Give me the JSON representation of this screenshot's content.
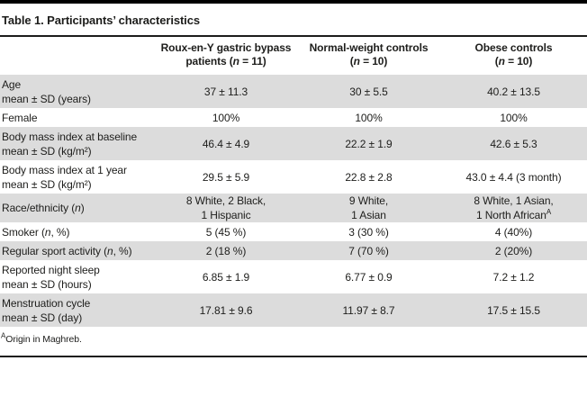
{
  "page": {
    "title": "Table 1. Participants’ characteristics",
    "footnote": [
      {
        "t": "A",
        "s": true
      },
      {
        "t": "Origin in Maghreb."
      }
    ]
  },
  "colors": {
    "shaded_row": "#dcdcdc",
    "rule": "#1d1d1b",
    "text": "#1d1d1b"
  },
  "header": {
    "columns": [
      {
        "line1": "Roux-en-Y gastric bypass",
        "line2": [
          {
            "t": "patients ("
          },
          {
            "t": "n",
            "i": true
          },
          {
            "t": " = 11)"
          }
        ]
      },
      {
        "line1": "Normal-weight controls",
        "line2": [
          {
            "t": "("
          },
          {
            "t": "n",
            "i": true
          },
          {
            "t": " = 10)"
          }
        ]
      },
      {
        "line1": "Obese controls",
        "line2": [
          {
            "t": "("
          },
          {
            "t": "n",
            "i": true
          },
          {
            "t": " = 10)"
          }
        ]
      }
    ]
  },
  "rows": [
    {
      "shaded": true,
      "label": [
        [
          {
            "t": "Age"
          }
        ],
        [
          {
            "t": "mean ± SD (years)"
          }
        ]
      ],
      "cells": [
        [
          [
            {
              "t": "37 ± 11.3"
            }
          ]
        ],
        [
          [
            {
              "t": "30 ± 5.5"
            }
          ]
        ],
        [
          [
            {
              "t": "40.2 ± 13.5"
            }
          ]
        ]
      ]
    },
    {
      "shaded": false,
      "label": [
        [
          {
            "t": "Female"
          }
        ]
      ],
      "cells": [
        [
          [
            {
              "t": "100%"
            }
          ]
        ],
        [
          [
            {
              "t": "100%"
            }
          ]
        ],
        [
          [
            {
              "t": "100%"
            }
          ]
        ]
      ]
    },
    {
      "shaded": true,
      "label": [
        [
          {
            "t": "Body mass index at baseline"
          }
        ],
        [
          {
            "t": "mean ± SD (kg/m²)"
          }
        ]
      ],
      "cells": [
        [
          [
            {
              "t": "46.4 ± 4.9"
            }
          ]
        ],
        [
          [
            {
              "t": "22.2 ± 1.9"
            }
          ]
        ],
        [
          [
            {
              "t": "42.6 ± 5.3"
            }
          ]
        ]
      ]
    },
    {
      "shaded": false,
      "label": [
        [
          {
            "t": "Body mass index at 1 year"
          }
        ],
        [
          {
            "t": "mean ± SD (kg/m²)"
          }
        ]
      ],
      "cells": [
        [
          [
            {
              "t": "29.5 ± 5.9"
            }
          ]
        ],
        [
          [
            {
              "t": "22.8 ± 2.8"
            }
          ]
        ],
        [
          [
            {
              "t": "43.0 ± 4.4 (3 month)"
            }
          ]
        ]
      ]
    },
    {
      "shaded": true,
      "label": [
        [
          {
            "t": "Race/ethnicity ("
          },
          {
            "t": "n",
            "i": true
          },
          {
            "t": ")"
          }
        ]
      ],
      "cells": [
        [
          [
            {
              "t": "8 White, 2 Black,"
            }
          ],
          [
            {
              "t": "1 Hispanic"
            }
          ]
        ],
        [
          [
            {
              "t": "9 White,"
            }
          ],
          [
            {
              "t": "1 Asian"
            }
          ]
        ],
        [
          [
            {
              "t": "8 White, 1 Asian,"
            }
          ],
          [
            {
              "t": "1 North African"
            },
            {
              "t": "A",
              "s": true
            }
          ]
        ]
      ]
    },
    {
      "shaded": false,
      "label": [
        [
          {
            "t": "Smoker ("
          },
          {
            "t": "n",
            "i": true
          },
          {
            "t": ", %)"
          }
        ]
      ],
      "cells": [
        [
          [
            {
              "t": "5 (45 %)"
            }
          ]
        ],
        [
          [
            {
              "t": "3 (30 %)"
            }
          ]
        ],
        [
          [
            {
              "t": "4 (40%)"
            }
          ]
        ]
      ]
    },
    {
      "shaded": true,
      "label": [
        [
          {
            "t": "Regular sport activity ("
          },
          {
            "t": "n",
            "i": true
          },
          {
            "t": ", %)"
          }
        ]
      ],
      "cells": [
        [
          [
            {
              "t": "2 (18 %)"
            }
          ]
        ],
        [
          [
            {
              "t": "7 (70 %)"
            }
          ]
        ],
        [
          [
            {
              "t": "2 (20%)"
            }
          ]
        ]
      ]
    },
    {
      "shaded": false,
      "label": [
        [
          {
            "t": "Reported night sleep"
          }
        ],
        [
          {
            "t": "mean ± SD (hours)"
          }
        ]
      ],
      "cells": [
        [
          [
            {
              "t": "6.85 ± 1.9"
            }
          ]
        ],
        [
          [
            {
              "t": "6.77 ± 0.9"
            }
          ]
        ],
        [
          [
            {
              "t": "7.2 ± 1.2"
            }
          ]
        ]
      ]
    },
    {
      "shaded": true,
      "label": [
        [
          {
            "t": "Menstruation cycle"
          }
        ],
        [
          {
            "t": "mean ± SD (day)"
          }
        ]
      ],
      "cells": [
        [
          [
            {
              "t": "17.81 ± 9.6"
            }
          ]
        ],
        [
          [
            {
              "t": "11.97 ± 8.7"
            }
          ]
        ],
        [
          [
            {
              "t": "17.5 ± 15.5"
            }
          ]
        ]
      ]
    }
  ]
}
